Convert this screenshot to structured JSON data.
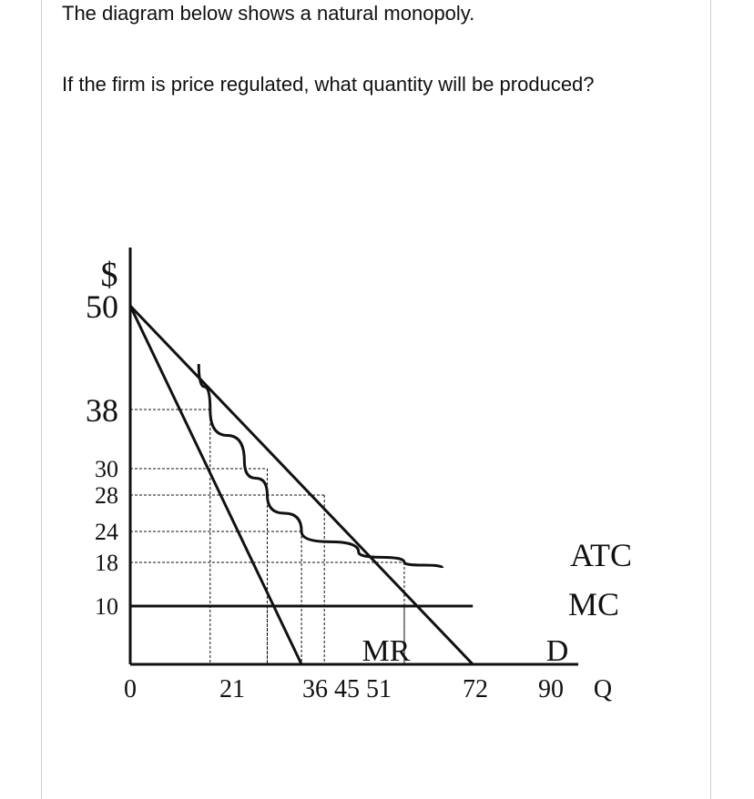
{
  "question": {
    "line1": "The diagram below shows a natural monopoly.",
    "line2": "If the firm is price regulated, what quantity will be produced?"
  },
  "chart_data": {
    "type": "line",
    "y_axis_label": "$",
    "x_axis_label": "Q",
    "x_ticks": [
      0,
      21,
      36,
      45,
      51,
      72,
      90
    ],
    "x_tick_labels": [
      "0",
      "21",
      "36 45 51",
      "72",
      "90"
    ],
    "y_ticks": [
      50,
      38,
      30,
      28,
      24,
      18,
      10
    ],
    "series": [
      {
        "name": "D",
        "points": [
          [
            0,
            50
          ],
          [
            90,
            0
          ]
        ]
      },
      {
        "name": "MR",
        "points": [
          [
            0,
            50
          ],
          [
            45,
            0
          ]
        ]
      },
      {
        "name": "MC",
        "points": [
          [
            0,
            10
          ],
          [
            90,
            10
          ]
        ]
      },
      {
        "name": "ATC",
        "points": [
          [
            18,
            45
          ],
          [
            21,
            38
          ],
          [
            30,
            31
          ],
          [
            36,
            28
          ],
          [
            45,
            24
          ],
          [
            60,
            20
          ],
          [
            72,
            18
          ],
          [
            82,
            17
          ]
        ]
      }
    ],
    "guides": [
      {
        "x": 21,
        "y": 38
      },
      {
        "x": 36,
        "y": 30
      },
      {
        "x": 45,
        "y": 24
      },
      {
        "x": 51,
        "y": 28
      },
      {
        "x": 72,
        "y": 18
      },
      {
        "x": 36,
        "y": 10
      },
      {
        "x": 72,
        "y": 10
      }
    ]
  },
  "colors": {
    "ink": "#111111",
    "border": "#cfcfcf",
    "background": "#ffffff"
  }
}
